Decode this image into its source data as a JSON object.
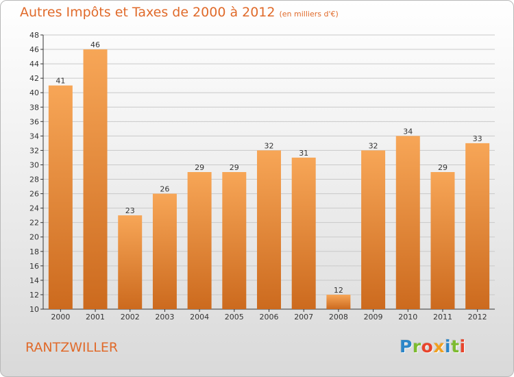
{
  "title": "Autres Impôts et Taxes de 2000 à 2012",
  "subtitle": "(en milliers d'€)",
  "region": "RANTZWILLER",
  "logo": {
    "letters": [
      "P",
      "r",
      "o",
      "x",
      "i",
      "t",
      "i"
    ],
    "colors": [
      "#2c86c8",
      "#7dbb30",
      "#e8442c",
      "#f0a020",
      "#2c86c8",
      "#7dbb30",
      "#e8442c"
    ]
  },
  "colors": {
    "accent": "#e06a2a",
    "bar_top": "#f7a657",
    "bar_bottom": "#cc6a1e",
    "grid": "#c9c9c9",
    "axis": "#333333"
  },
  "chart_data": {
    "type": "bar",
    "categories": [
      "2000",
      "2001",
      "2002",
      "2003",
      "2004",
      "2005",
      "2006",
      "2007",
      "2008",
      "2009",
      "2010",
      "2011",
      "2012"
    ],
    "values": [
      41,
      46,
      23,
      26,
      29,
      29,
      32,
      31,
      12,
      32,
      34,
      29,
      33
    ],
    "ylim": [
      10,
      48
    ],
    "yticks": [
      10,
      12,
      14,
      16,
      18,
      20,
      22,
      24,
      26,
      28,
      30,
      32,
      34,
      36,
      38,
      40,
      42,
      44,
      46,
      48
    ],
    "grid": true,
    "xlabel": "",
    "ylabel": ""
  }
}
